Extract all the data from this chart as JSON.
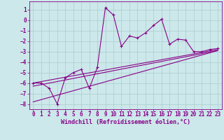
{
  "title": "",
  "xlabel": "Windchill (Refroidissement éolien,°C)",
  "ylabel": "",
  "bg_color": "#cce8ea",
  "line_color": "#880088",
  "grid_color": "#aacccc",
  "xlim": [
    -0.5,
    23.5
  ],
  "ylim": [
    -8.5,
    1.8
  ],
  "xticks": [
    0,
    1,
    2,
    3,
    4,
    5,
    6,
    7,
    8,
    9,
    10,
    11,
    12,
    13,
    14,
    15,
    16,
    17,
    18,
    19,
    20,
    21,
    22,
    23
  ],
  "yticks": [
    1,
    0,
    -1,
    -2,
    -3,
    -4,
    -5,
    -6,
    -7,
    -8
  ],
  "line1_x": [
    0,
    1,
    2,
    3,
    4,
    5,
    6,
    7,
    8,
    9,
    10,
    11,
    12,
    13,
    14,
    15,
    16,
    17,
    18,
    19,
    20,
    21,
    22,
    23
  ],
  "line1_y": [
    -6.0,
    -6.0,
    -6.5,
    -8.0,
    -5.5,
    -5.0,
    -4.7,
    -6.5,
    -4.5,
    1.2,
    0.5,
    -2.5,
    -1.5,
    -1.7,
    -1.2,
    -0.5,
    0.1,
    -2.3,
    -1.8,
    -1.9,
    -3.0,
    -3.0,
    -2.8,
    -2.7
  ],
  "line2_x": [
    0,
    23
  ],
  "line2_y": [
    -6.0,
    -2.8
  ],
  "line3_x": [
    0,
    23
  ],
  "line3_y": [
    -6.3,
    -2.9
  ],
  "line4_x": [
    0,
    23
  ],
  "line4_y": [
    -7.8,
    -2.9
  ]
}
